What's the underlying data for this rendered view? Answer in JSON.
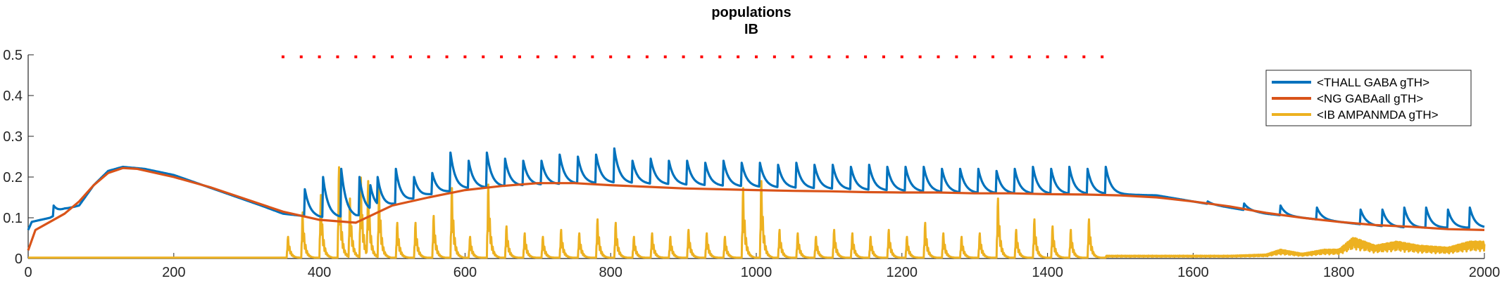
{
  "chart_data": {
    "type": "line",
    "title": "populations",
    "subtitle": "IB",
    "xlabel": "",
    "ylabel": "",
    "xlim": [
      0,
      2000
    ],
    "ylim": [
      0,
      0.5
    ],
    "x_ticks": [
      "0",
      "200",
      "400",
      "600",
      "800",
      "1000",
      "1200",
      "1400",
      "1600",
      "1800",
      "2000"
    ],
    "y_ticks": [
      "0",
      "0.1",
      "0.2",
      "0.3",
      "0.4",
      "0.5"
    ],
    "legend_position": "top-right",
    "grid": false,
    "markers": {
      "color": "#ff0000",
      "y": 0.495,
      "x_start": 350,
      "x_end": 1480,
      "spacing": 25
    },
    "series": [
      {
        "name": "<THALL GABA gTH>",
        "color": "#0072bd",
        "base": [
          [
            0,
            0.07
          ],
          [
            5,
            0.09
          ],
          [
            30,
            0.1
          ],
          [
            50,
            0.12
          ],
          [
            70,
            0.13
          ],
          [
            90,
            0.18
          ],
          [
            110,
            0.215
          ],
          [
            130,
            0.225
          ],
          [
            160,
            0.22
          ],
          [
            200,
            0.205
          ],
          [
            240,
            0.18
          ],
          [
            280,
            0.155
          ],
          [
            320,
            0.13
          ],
          [
            350,
            0.11
          ],
          [
            400,
            0.1
          ],
          [
            450,
            0.1
          ],
          [
            500,
            0.13
          ],
          [
            550,
            0.155
          ],
          [
            600,
            0.17
          ],
          [
            700,
            0.18
          ],
          [
            800,
            0.185
          ],
          [
            900,
            0.18
          ],
          [
            1000,
            0.175
          ],
          [
            1100,
            0.17
          ],
          [
            1200,
            0.165
          ],
          [
            1300,
            0.16
          ],
          [
            1400,
            0.158
          ],
          [
            1480,
            0.158
          ],
          [
            1550,
            0.155
          ],
          [
            1600,
            0.14
          ],
          [
            1650,
            0.125
          ],
          [
            1700,
            0.11
          ],
          [
            1750,
            0.1
          ],
          [
            1800,
            0.09
          ],
          [
            1850,
            0.08
          ],
          [
            1900,
            0.075
          ],
          [
            1950,
            0.075
          ],
          [
            2000,
            0.075
          ]
        ],
        "peaks": [
          [
            35,
            0.13
          ],
          [
            380,
            0.17
          ],
          [
            405,
            0.2
          ],
          [
            430,
            0.22
          ],
          [
            455,
            0.2
          ],
          [
            470,
            0.18
          ],
          [
            480,
            0.2
          ],
          [
            505,
            0.22
          ],
          [
            530,
            0.2
          ],
          [
            555,
            0.21
          ],
          [
            580,
            0.26
          ],
          [
            605,
            0.24
          ],
          [
            630,
            0.26
          ],
          [
            655,
            0.245
          ],
          [
            680,
            0.24
          ],
          [
            705,
            0.24
          ],
          [
            730,
            0.255
          ],
          [
            755,
            0.25
          ],
          [
            780,
            0.255
          ],
          [
            805,
            0.27
          ],
          [
            830,
            0.24
          ],
          [
            855,
            0.245
          ],
          [
            880,
            0.24
          ],
          [
            905,
            0.24
          ],
          [
            930,
            0.235
          ],
          [
            955,
            0.24
          ],
          [
            980,
            0.235
          ],
          [
            1005,
            0.235
          ],
          [
            1030,
            0.23
          ],
          [
            1055,
            0.235
          ],
          [
            1080,
            0.23
          ],
          [
            1105,
            0.23
          ],
          [
            1130,
            0.225
          ],
          [
            1155,
            0.23
          ],
          [
            1180,
            0.225
          ],
          [
            1205,
            0.225
          ],
          [
            1230,
            0.225
          ],
          [
            1255,
            0.22
          ],
          [
            1280,
            0.22
          ],
          [
            1305,
            0.22
          ],
          [
            1330,
            0.215
          ],
          [
            1355,
            0.22
          ],
          [
            1380,
            0.225
          ],
          [
            1405,
            0.22
          ],
          [
            1430,
            0.225
          ],
          [
            1455,
            0.22
          ],
          [
            1480,
            0.225
          ],
          [
            1620,
            0.14
          ],
          [
            1670,
            0.135
          ],
          [
            1720,
            0.13
          ],
          [
            1770,
            0.125
          ],
          [
            1830,
            0.12
          ],
          [
            1860,
            0.12
          ],
          [
            1890,
            0.125
          ],
          [
            1920,
            0.125
          ],
          [
            1950,
            0.12
          ],
          [
            1980,
            0.125
          ]
        ]
      },
      {
        "name": "<NG GABAall gTH>",
        "color": "#d95319",
        "points": [
          [
            0,
            0.02
          ],
          [
            10,
            0.07
          ],
          [
            30,
            0.09
          ],
          [
            50,
            0.11
          ],
          [
            70,
            0.14
          ],
          [
            90,
            0.18
          ],
          [
            110,
            0.21
          ],
          [
            130,
            0.222
          ],
          [
            150,
            0.22
          ],
          [
            200,
            0.2
          ],
          [
            250,
            0.175
          ],
          [
            300,
            0.145
          ],
          [
            350,
            0.115
          ],
          [
            400,
            0.095
          ],
          [
            450,
            0.088
          ],
          [
            500,
            0.13
          ],
          [
            550,
            0.15
          ],
          [
            600,
            0.168
          ],
          [
            650,
            0.178
          ],
          [
            700,
            0.185
          ],
          [
            750,
            0.185
          ],
          [
            800,
            0.18
          ],
          [
            850,
            0.176
          ],
          [
            900,
            0.172
          ],
          [
            950,
            0.17
          ],
          [
            1000,
            0.168
          ],
          [
            1050,
            0.166
          ],
          [
            1100,
            0.165
          ],
          [
            1150,
            0.163
          ],
          [
            1200,
            0.162
          ],
          [
            1250,
            0.162
          ],
          [
            1300,
            0.16
          ],
          [
            1350,
            0.16
          ],
          [
            1400,
            0.158
          ],
          [
            1450,
            0.157
          ],
          [
            1500,
            0.155
          ],
          [
            1550,
            0.15
          ],
          [
            1600,
            0.14
          ],
          [
            1650,
            0.128
          ],
          [
            1700,
            0.112
          ],
          [
            1750,
            0.1
          ],
          [
            1800,
            0.09
          ],
          [
            1850,
            0.082
          ],
          [
            1900,
            0.078
          ],
          [
            1950,
            0.072
          ],
          [
            2000,
            0.07
          ]
        ]
      },
      {
        "name": "<IB AMPANMDA gTH>",
        "color": "#edb120",
        "baseline": 0.002,
        "onset_x": 350,
        "offset_x": 1480,
        "spikes": [
          [
            355,
            0.06
          ],
          [
            375,
            0.13
          ],
          [
            400,
            0.18
          ],
          [
            425,
            0.26
          ],
          [
            440,
            0.17
          ],
          [
            455,
            0.23
          ],
          [
            465,
            0.22
          ],
          [
            480,
            0.2
          ],
          [
            505,
            0.1
          ],
          [
            530,
            0.1
          ],
          [
            555,
            0.12
          ],
          [
            580,
            0.2
          ],
          [
            605,
            0.06
          ],
          [
            630,
            0.21
          ],
          [
            655,
            0.09
          ],
          [
            680,
            0.07
          ],
          [
            705,
            0.06
          ],
          [
            730,
            0.08
          ],
          [
            755,
            0.07
          ],
          [
            780,
            0.11
          ],
          [
            805,
            0.1
          ],
          [
            830,
            0.06
          ],
          [
            855,
            0.07
          ],
          [
            880,
            0.06
          ],
          [
            905,
            0.08
          ],
          [
            930,
            0.07
          ],
          [
            955,
            0.06
          ],
          [
            980,
            0.2
          ],
          [
            1005,
            0.22
          ],
          [
            1030,
            0.08
          ],
          [
            1055,
            0.07
          ],
          [
            1080,
            0.06
          ],
          [
            1105,
            0.08
          ],
          [
            1130,
            0.07
          ],
          [
            1155,
            0.06
          ],
          [
            1180,
            0.08
          ],
          [
            1205,
            0.06
          ],
          [
            1230,
            0.1
          ],
          [
            1255,
            0.07
          ],
          [
            1280,
            0.06
          ],
          [
            1305,
            0.07
          ],
          [
            1330,
            0.17
          ],
          [
            1355,
            0.08
          ],
          [
            1380,
            0.11
          ],
          [
            1405,
            0.09
          ],
          [
            1430,
            0.08
          ],
          [
            1455,
            0.11
          ],
          [
            1480,
            0.12
          ]
        ],
        "late_noise": [
          [
            1650,
            0.005
          ],
          [
            1700,
            0.008
          ],
          [
            1720,
            0.02
          ],
          [
            1750,
            0.01
          ],
          [
            1780,
            0.02
          ],
          [
            1800,
            0.02
          ],
          [
            1820,
            0.05
          ],
          [
            1850,
            0.03
          ],
          [
            1880,
            0.04
          ],
          [
            1910,
            0.03
          ],
          [
            1950,
            0.025
          ],
          [
            1980,
            0.04
          ]
        ]
      }
    ]
  }
}
